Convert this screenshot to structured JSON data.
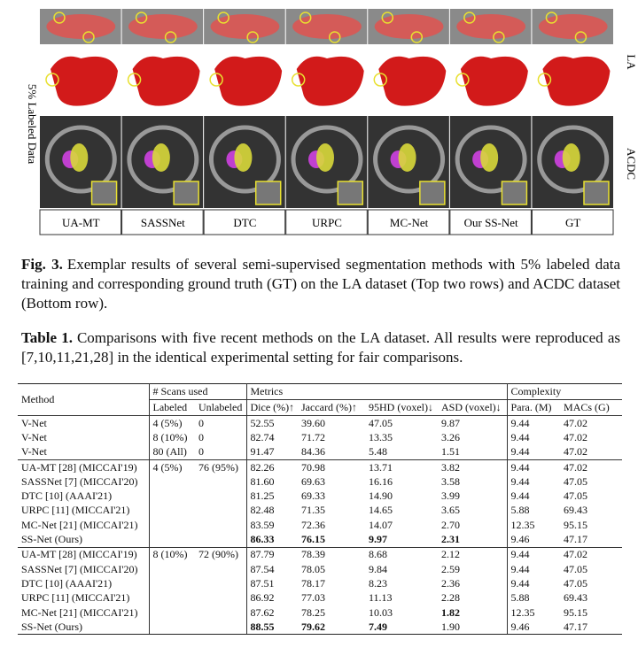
{
  "figure": {
    "side_label": "5% Labeled Data",
    "row_labels": [
      "LA",
      "ACDC"
    ],
    "columns": [
      "UA-MT",
      "SASSNet",
      "DTC",
      "URPC",
      "MC-Net",
      "Our SS-Net",
      "GT"
    ],
    "caption": {
      "label": "Fig. 3.",
      "text": "Exemplar results of several semi-supervised segmentation methods with 5% labeled data training and corresponding ground truth (GT) on the LA dataset (Top two rows) and ACDC dataset (Bottom row)."
    }
  },
  "table": {
    "caption": {
      "label": "Table 1.",
      "text": "Comparisons with five recent methods on the LA dataset. All results were reproduced as [7,10,11,21,28] in the identical experimental setting for fair comparisons."
    },
    "header": {
      "method": "Method",
      "scans": "# Scans used",
      "metrics": "Metrics",
      "complexity": "Complexity",
      "columns": [
        "Labeled",
        "Unlabeled",
        "Dice (%)↑",
        "Jaccard (%)↑",
        "95HD (voxel)↓",
        "ASD (voxel)↓",
        "Para. (M)",
        "MACs (G)"
      ]
    },
    "sections": [
      {
        "rows": [
          {
            "cells": [
              "V-Net",
              "4 (5%)",
              "0",
              "52.55",
              "39.60",
              "47.05",
              "9.87",
              "9.44",
              "47.02"
            ]
          },
          {
            "cells": [
              "V-Net",
              "8 (10%)",
              "0",
              "82.74",
              "71.72",
              "13.35",
              "3.26",
              "9.44",
              "47.02"
            ]
          },
          {
            "cells": [
              "V-Net",
              "80 (All)",
              "0",
              "91.47",
              "84.36",
              "5.48",
              "1.51",
              "9.44",
              "47.02"
            ]
          }
        ]
      },
      {
        "rows": [
          {
            "cells": [
              "UA-MT [28] (MICCAI'19)",
              "4 (5%)",
              "76 (95%)",
              "82.26",
              "70.98",
              "13.71",
              "3.82",
              "9.44",
              "47.02"
            ]
          },
          {
            "cells": [
              "SASSNet [7] (MICCAI'20)",
              null,
              null,
              "81.60",
              "69.63",
              "16.16",
              "3.58",
              "9.44",
              "47.05"
            ]
          },
          {
            "cells": [
              "DTC [10] (AAAI'21)",
              null,
              null,
              "81.25",
              "69.33",
              "14.90",
              "3.99",
              "9.44",
              "47.05"
            ]
          },
          {
            "cells": [
              "URPC [11] (MICCAI'21)",
              null,
              null,
              "82.48",
              "71.35",
              "14.65",
              "3.65",
              "5.88",
              "69.43"
            ]
          },
          {
            "cells": [
              "MC-Net [21] (MICCAI'21)",
              null,
              null,
              "83.59",
              "72.36",
              "14.07",
              "2.70",
              "12.35",
              "95.15"
            ]
          },
          {
            "cells": [
              "SS-Net (Ours)",
              null,
              null,
              "86.33",
              "76.15",
              "9.97",
              "2.31",
              "9.46",
              "47.17"
            ],
            "bold": [
              3,
              4,
              5,
              6
            ]
          }
        ]
      },
      {
        "rows": [
          {
            "cells": [
              "UA-MT [28] (MICCAI'19)",
              "8 (10%)",
              "72 (90%)",
              "87.79",
              "78.39",
              "8.68",
              "2.12",
              "9.44",
              "47.02"
            ]
          },
          {
            "cells": [
              "SASSNet [7] (MICCAI'20)",
              null,
              null,
              "87.54",
              "78.05",
              "9.84",
              "2.59",
              "9.44",
              "47.05"
            ]
          },
          {
            "cells": [
              "DTC [10] (AAAI'21)",
              null,
              null,
              "87.51",
              "78.17",
              "8.23",
              "2.36",
              "9.44",
              "47.05"
            ]
          },
          {
            "cells": [
              "URPC [11] (MICCAI'21)",
              null,
              null,
              "86.92",
              "77.03",
              "11.13",
              "2.28",
              "5.88",
              "69.43"
            ]
          },
          {
            "cells": [
              "MC-Net [21] (MICCAI'21)",
              null,
              null,
              "87.62",
              "78.25",
              "10.03",
              "1.82",
              "12.35",
              "95.15"
            ],
            "bold": [
              6
            ]
          },
          {
            "cells": [
              "SS-Net (Ours)",
              null,
              null,
              "88.55",
              "79.62",
              "7.49",
              "1.90",
              "9.46",
              "47.17"
            ],
            "bold": [
              3,
              4,
              5
            ]
          }
        ]
      }
    ]
  }
}
